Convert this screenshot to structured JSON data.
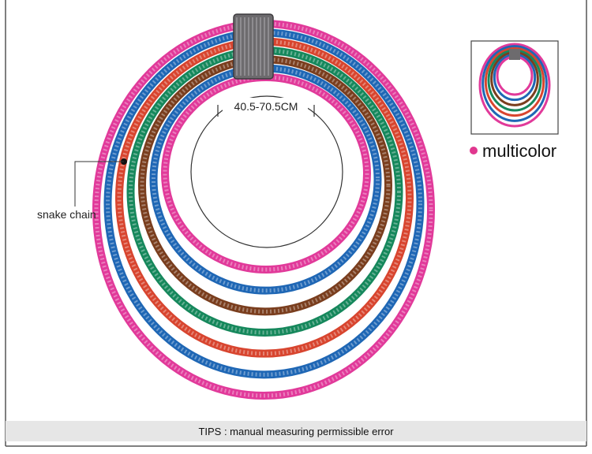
{
  "measurement": "40.5-70.5CM",
  "callout": "snake chain",
  "color_option": "multicolor",
  "tips": "TIPS : manual measuring permissible error"
}
